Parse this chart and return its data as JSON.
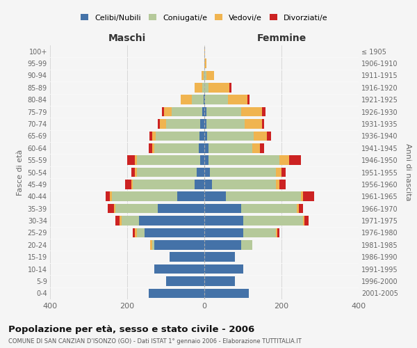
{
  "age_groups": [
    "0-4",
    "5-9",
    "10-14",
    "15-19",
    "20-24",
    "25-29",
    "30-34",
    "35-39",
    "40-44",
    "45-49",
    "50-54",
    "55-59",
    "60-64",
    "65-69",
    "70-74",
    "75-79",
    "80-84",
    "85-89",
    "90-94",
    "95-99",
    "100+"
  ],
  "birth_years": [
    "2001-2005",
    "1996-2000",
    "1991-1995",
    "1986-1990",
    "1981-1985",
    "1976-1980",
    "1971-1975",
    "1966-1970",
    "1961-1965",
    "1956-1960",
    "1951-1955",
    "1946-1950",
    "1941-1945",
    "1936-1940",
    "1931-1935",
    "1926-1930",
    "1921-1925",
    "1916-1920",
    "1911-1915",
    "1906-1910",
    "≤ 1905"
  ],
  "colors": {
    "celibe": "#4472a8",
    "coniugato": "#b5c99a",
    "vedovo": "#f0b450",
    "divorziato": "#cc2222"
  },
  "maschi": {
    "celibe": [
      145,
      100,
      130,
      90,
      130,
      155,
      170,
      120,
      70,
      25,
      20,
      10,
      15,
      12,
      10,
      5,
      2,
      0,
      0,
      0,
      0
    ],
    "coniugato": [
      0,
      0,
      0,
      0,
      5,
      20,
      45,
      110,
      170,
      160,
      155,
      165,
      115,
      115,
      90,
      80,
      30,
      5,
      2,
      0,
      0
    ],
    "vedovo": [
      0,
      0,
      0,
      0,
      5,
      5,
      5,
      5,
      5,
      5,
      5,
      5,
      5,
      8,
      15,
      20,
      30,
      20,
      5,
      0,
      0
    ],
    "divorziato": [
      0,
      0,
      0,
      0,
      0,
      5,
      10,
      15,
      10,
      15,
      10,
      20,
      10,
      8,
      5,
      5,
      0,
      0,
      0,
      0,
      0
    ]
  },
  "femmine": {
    "celibe": [
      115,
      80,
      100,
      80,
      95,
      100,
      100,
      95,
      55,
      20,
      15,
      10,
      10,
      8,
      5,
      5,
      2,
      0,
      0,
      0,
      0
    ],
    "coniugato": [
      0,
      0,
      0,
      0,
      30,
      85,
      155,
      145,
      195,
      165,
      170,
      185,
      115,
      120,
      100,
      90,
      60,
      10,
      5,
      0,
      0
    ],
    "vedovo": [
      0,
      0,
      0,
      0,
      0,
      5,
      5,
      5,
      5,
      10,
      15,
      25,
      20,
      35,
      45,
      55,
      50,
      55,
      20,
      5,
      2
    ],
    "divorziato": [
      0,
      0,
      0,
      0,
      0,
      5,
      10,
      10,
      30,
      15,
      10,
      30,
      10,
      10,
      5,
      8,
      5,
      5,
      0,
      0,
      0
    ]
  },
  "title": "Popolazione per età, sesso e stato civile - 2006",
  "subtitle": "COMUNE DI SAN CANZIAN D’ISONZO (GO) - Dati ISTAT 1° gennaio 2006 - Elaborazione TUTTITALIA.IT",
  "xlabel_left": "Maschi",
  "xlabel_right": "Femmine",
  "ylabel_left": "Fasce di età",
  "ylabel_right": "Anni di nascita",
  "xlim": 400,
  "bg_color": "#f5f5f5",
  "legend_labels": [
    "Celibi/Nubili",
    "Coniugati/e",
    "Vedovi/e",
    "Divorziati/e"
  ]
}
